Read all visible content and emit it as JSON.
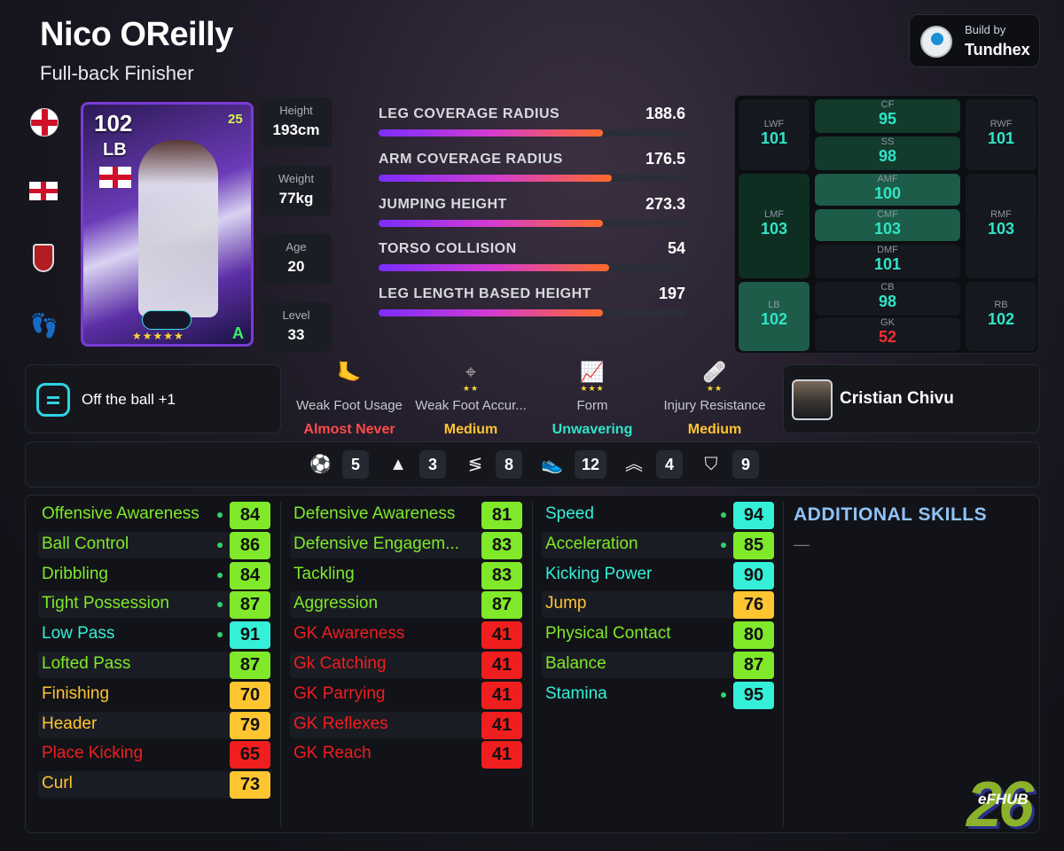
{
  "player": {
    "name": "Nico OReilly",
    "subtitle": "Full-back Finisher"
  },
  "build_by": {
    "label": "Build by",
    "name": "Tundhex"
  },
  "card": {
    "rating": "102",
    "position": "LB",
    "year": "25",
    "stars": "★★★★★",
    "grade": "A"
  },
  "info": [
    {
      "label": "Height",
      "value": "193cm"
    },
    {
      "label": "Weight",
      "value": "77kg"
    },
    {
      "label": "Age",
      "value": "20"
    },
    {
      "label": "Level",
      "value": "33"
    }
  ],
  "physical": [
    {
      "label": "LEG COVERAGE RADIUS",
      "value": "188.6",
      "fill": 0.73
    },
    {
      "label": "ARM COVERAGE RADIUS",
      "value": "176.5",
      "fill": 0.76
    },
    {
      "label": "JUMPING HEIGHT",
      "value": "273.3",
      "fill": 0.73
    },
    {
      "label": "TORSO COLLISION",
      "value": "54",
      "fill": 0.75
    },
    {
      "label": "LEG LENGTH BASED HEIGHT",
      "value": "197",
      "fill": 0.73
    }
  ],
  "positions": {
    "LWF": "101",
    "CF": "95",
    "RWF": "101",
    "SS": "98",
    "LMF": "103",
    "AMF": "100",
    "RMF": "103",
    "CMF": "103",
    "DMF": "101",
    "LB": "102",
    "CB": "98",
    "RB": "102",
    "GK": "52"
  },
  "position_labels": {
    "LWF": "LWF",
    "CF": "CF",
    "RWF": "RWF",
    "SS": "SS",
    "LMF": "LMF",
    "AMF": "AMF",
    "RMF": "RMF",
    "CMF": "CMF",
    "DMF": "DMF",
    "LB": "LB",
    "CB": "CB",
    "RB": "RB",
    "GK": "GK"
  },
  "skill": {
    "text": "Off the ball +1"
  },
  "attributes": [
    {
      "label": "Weak Foot Usage",
      "value": "Almost Never",
      "color": "#ff4a4a",
      "stars": "",
      "icon": "foot-icon"
    },
    {
      "label": "Weak Foot Accur...",
      "value": "Medium",
      "color": "#ffc531",
      "stars": "★★",
      "icon": "crosshair-icon"
    },
    {
      "label": "Form",
      "value": "Unwavering",
      "color": "#2fe5c8",
      "stars": "★★★",
      "icon": "chart-icon"
    },
    {
      "label": "Injury Resistance",
      "value": "Medium",
      "color": "#ffc531",
      "stars": "★★",
      "icon": "bandage-icon"
    }
  ],
  "coach": {
    "name": "Cristian Chivu"
  },
  "icon_bar": [
    {
      "icon": "ball-icon",
      "value": "5"
    },
    {
      "icon": "cone-icon",
      "value": "3"
    },
    {
      "icon": "dribble-icon",
      "value": "8"
    },
    {
      "icon": "boot-icon",
      "value": "12"
    },
    {
      "icon": "chevrons-up-icon",
      "value": "4"
    },
    {
      "icon": "shield-icon",
      "value": "9"
    }
  ],
  "stats_col1": [
    {
      "name": "Offensive Awareness",
      "value": "84",
      "dot": true
    },
    {
      "name": "Ball Control",
      "value": "86",
      "dot": true
    },
    {
      "name": "Dribbling",
      "value": "84",
      "dot": true
    },
    {
      "name": "Tight Possession",
      "value": "87",
      "dot": true
    },
    {
      "name": "Low Pass",
      "value": "91",
      "dot": true
    },
    {
      "name": "Lofted Pass",
      "value": "87",
      "dot": false
    },
    {
      "name": "Finishing",
      "value": "70",
      "dot": false
    },
    {
      "name": "Header",
      "value": "79",
      "dot": false
    },
    {
      "name": "Place Kicking",
      "value": "65",
      "dot": false
    },
    {
      "name": "Curl",
      "value": "73",
      "dot": false
    }
  ],
  "stats_col2": [
    {
      "name": "Defensive Awareness",
      "value": "81",
      "dot": false
    },
    {
      "name": "Defensive Engagem...",
      "value": "83",
      "dot": false
    },
    {
      "name": "Tackling",
      "value": "83",
      "dot": false
    },
    {
      "name": "Aggression",
      "value": "87",
      "dot": false
    },
    {
      "name": "GK Awareness",
      "value": "41",
      "dot": false
    },
    {
      "name": "Gk Catching",
      "value": "41",
      "dot": false
    },
    {
      "name": "GK Parrying",
      "value": "41",
      "dot": false
    },
    {
      "name": "GK Reflexes",
      "value": "41",
      "dot": false
    },
    {
      "name": "GK Reach",
      "value": "41",
      "dot": false
    }
  ],
  "stats_col3": [
    {
      "name": "Speed",
      "value": "94",
      "dot": true
    },
    {
      "name": "Acceleration",
      "value": "85",
      "dot": true
    },
    {
      "name": "Kicking Power",
      "value": "90",
      "dot": false
    },
    {
      "name": "Jump",
      "value": "76",
      "dot": false
    },
    {
      "name": "Physical Contact",
      "value": "80",
      "dot": false
    },
    {
      "name": "Balance",
      "value": "87",
      "dot": false
    },
    {
      "name": "Stamina",
      "value": "95",
      "dot": true
    }
  ],
  "additional_skills": {
    "title": "ADDITIONAL SKILLS",
    "value": "—"
  },
  "watermark": {
    "number": "26",
    "label": "eFHUB"
  },
  "colors": {
    "elite": "#35f0d8",
    "great": "#7fe92a",
    "good": "#ffc531",
    "poor": "#f01e1e"
  }
}
